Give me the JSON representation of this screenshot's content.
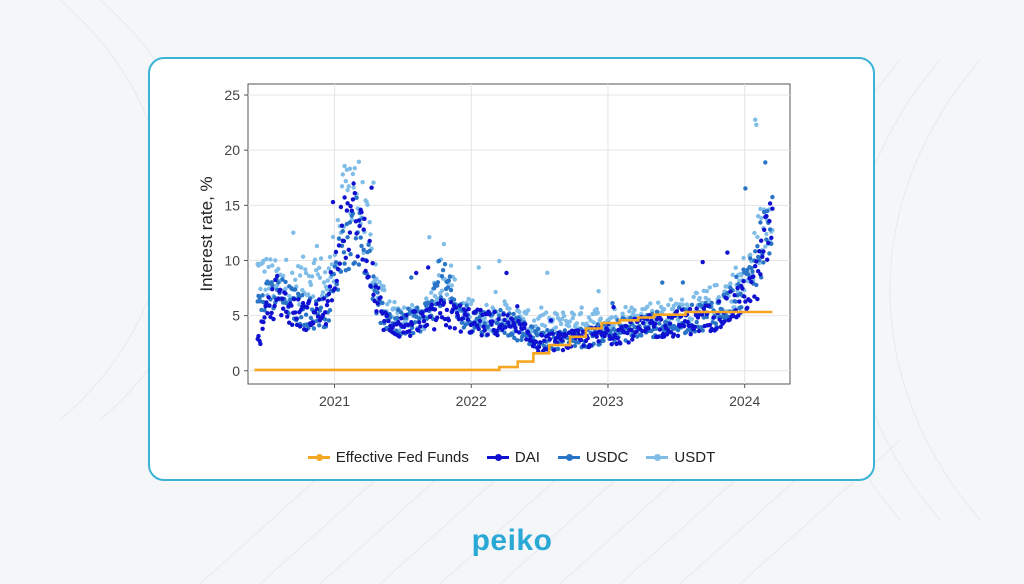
{
  "brand": {
    "logo_text": "peiko",
    "accent": "#2ba9d6",
    "card_border": "#3bb3d6"
  },
  "chart_data": {
    "type": "scatter",
    "title": "",
    "xlabel": "",
    "ylabel": "Interest rate, %",
    "xlim": [
      "2020-05-15",
      "2024-05-01"
    ],
    "ylim": [
      -1.2,
      26
    ],
    "x_ticks": [
      "2021",
      "2022",
      "2023",
      "2024"
    ],
    "y_ticks": [
      0,
      5,
      10,
      15,
      20,
      25
    ],
    "grid": true,
    "legend_position": "bottom",
    "series": [
      {
        "name": "Effective Fed Funds",
        "kind": "step-line",
        "color": "#f5a623",
        "points": [
          [
            "2020-06-01",
            0.08
          ],
          [
            "2022-03-17",
            0.33
          ],
          [
            "2022-05-05",
            0.83
          ],
          [
            "2022-06-16",
            1.58
          ],
          [
            "2022-07-28",
            2.33
          ],
          [
            "2022-09-22",
            3.08
          ],
          [
            "2022-11-03",
            3.83
          ],
          [
            "2022-12-15",
            4.33
          ],
          [
            "2023-02-02",
            4.58
          ],
          [
            "2023-03-23",
            4.83
          ],
          [
            "2023-05-04",
            5.08
          ],
          [
            "2023-07-27",
            5.33
          ],
          [
            "2024-03-15",
            5.33
          ]
        ]
      },
      {
        "name": "DAI",
        "kind": "points",
        "color": "#1010d0",
        "anchors": [
          [
            "2020-06-10",
            2.5
          ],
          [
            "2020-07-05",
            5
          ],
          [
            "2020-08-01",
            7
          ],
          [
            "2020-09-01",
            5.5
          ],
          [
            "2020-10-15",
            5
          ],
          [
            "2020-12-15",
            5.5
          ],
          [
            "2021-01-15",
            12
          ],
          [
            "2021-02-20",
            14
          ],
          [
            "2021-03-25",
            12
          ],
          [
            "2021-04-20",
            7
          ],
          [
            "2021-05-15",
            4.5
          ],
          [
            "2021-07-01",
            4
          ],
          [
            "2021-09-01",
            4.5
          ],
          [
            "2021-10-20",
            5.2
          ],
          [
            "2021-12-01",
            4.8
          ],
          [
            "2022-02-01",
            4.3
          ],
          [
            "2022-04-01",
            4.2
          ],
          [
            "2022-05-15",
            3.5
          ],
          [
            "2022-07-01",
            2.5
          ],
          [
            "2022-09-01",
            2.7
          ],
          [
            "2022-11-01",
            2.9
          ],
          [
            "2023-01-01",
            3.3
          ],
          [
            "2023-04-01",
            3.8
          ],
          [
            "2023-07-01",
            4.3
          ],
          [
            "2023-10-01",
            4.8
          ],
          [
            "2023-12-15",
            6
          ],
          [
            "2024-02-01",
            8
          ],
          [
            "2024-03-15",
            14
          ]
        ]
      },
      {
        "name": "USDC",
        "kind": "points",
        "color": "#2a74c8",
        "anchors": [
          [
            "2020-06-10",
            6
          ],
          [
            "2020-08-01",
            7
          ],
          [
            "2020-09-15",
            6
          ],
          [
            "2020-11-01",
            5
          ],
          [
            "2020-12-15",
            5.5
          ],
          [
            "2021-01-20",
            11
          ],
          [
            "2021-03-01",
            13
          ],
          [
            "2021-04-01",
            10
          ],
          [
            "2021-05-01",
            5
          ],
          [
            "2021-07-01",
            4.2
          ],
          [
            "2021-09-01",
            5
          ],
          [
            "2021-10-20",
            8
          ],
          [
            "2021-12-01",
            5
          ],
          [
            "2022-02-01",
            4.4
          ],
          [
            "2022-04-01",
            4.6
          ],
          [
            "2022-06-01",
            3.2
          ],
          [
            "2022-08-01",
            2.8
          ],
          [
            "2022-11-01",
            3
          ],
          [
            "2023-01-15",
            3.6
          ],
          [
            "2023-04-15",
            4.1
          ],
          [
            "2023-08-01",
            4.6
          ],
          [
            "2023-11-01",
            5.5
          ],
          [
            "2024-01-15",
            8
          ],
          [
            "2024-03-15",
            14
          ]
        ]
      },
      {
        "name": "USDT",
        "kind": "points",
        "color": "#7fbde8",
        "anchors": [
          [
            "2020-06-10",
            9
          ],
          [
            "2020-08-01",
            8
          ],
          [
            "2020-09-15",
            7.5
          ],
          [
            "2020-11-01",
            9
          ],
          [
            "2020-12-15",
            8
          ],
          [
            "2021-01-20",
            14
          ],
          [
            "2021-02-20",
            18
          ],
          [
            "2021-04-01",
            12
          ],
          [
            "2021-05-01",
            7
          ],
          [
            "2021-07-01",
            4.5
          ],
          [
            "2021-09-01",
            5
          ],
          [
            "2021-10-20",
            10
          ],
          [
            "2021-12-01",
            5.5
          ],
          [
            "2022-02-01",
            4.8
          ],
          [
            "2022-04-01",
            5
          ],
          [
            "2022-06-01",
            4.3
          ],
          [
            "2022-08-01",
            4.1
          ],
          [
            "2022-11-01",
            4.6
          ],
          [
            "2023-01-15",
            4.6
          ],
          [
            "2023-04-15",
            5
          ],
          [
            "2023-08-01",
            5.3
          ],
          [
            "2023-11-01",
            6.5
          ],
          [
            "2024-01-15",
            9
          ],
          [
            "2024-03-15",
            16
          ]
        ]
      }
    ]
  }
}
